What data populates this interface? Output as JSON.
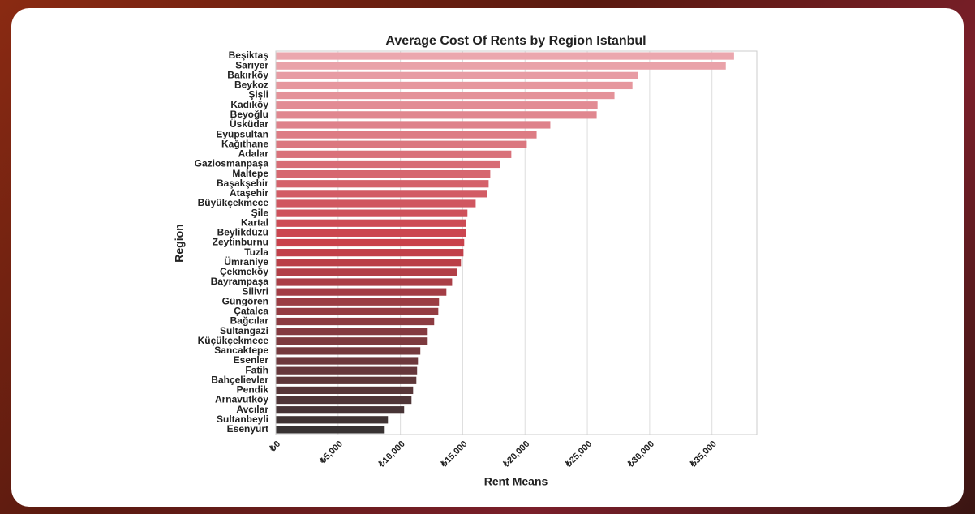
{
  "chart_data": {
    "type": "barh",
    "title": "Average Cost Of Rents by Region Istanbul",
    "xlabel": "Rent Means",
    "ylabel": "Region",
    "categories": [
      "Beşiktaş",
      "Sarıyer",
      "Bakırköy",
      "Beykoz",
      "Şişli",
      "Kadıköy",
      "Beyoğlu",
      "Üsküdar",
      "Eyüpsultan",
      "Kağıthane",
      "Adalar",
      "Gaziosmanpaşa",
      "Maltepe",
      "Başakşehir",
      "Ataşehir",
      "Büyükçekmece",
      "Şile",
      "Kartal",
      "Beylikdüzü",
      "Zeytinburnu",
      "Tuzla",
      "Ümraniye",
      "Çekmeköy",
      "Bayrampaşa",
      "Silivri",
      "Güngören",
      "Çatalca",
      "Bağcılar",
      "Sultangazi",
      "Küçükçekmece",
      "Sancaktepe",
      "Esenler",
      "Fatih",
      "Bahçelievler",
      "Pendik",
      "Arnavutköy",
      "Avcılar",
      "Sultanbeyli",
      "Esenyurt"
    ],
    "values": [
      36770,
      36110,
      29070,
      28620,
      27180,
      25820,
      25750,
      22030,
      20930,
      20140,
      18900,
      17990,
      17210,
      17080,
      16950,
      16040,
      15380,
      15250,
      15250,
      15120,
      15060,
      14860,
      14540,
      14150,
      13690,
      13100,
      13040,
      12710,
      12190,
      12190,
      11600,
      11410,
      11340,
      11280,
      11020,
      10890,
      10300,
      9000,
      8740
    ],
    "palette": [
      "#eba7ae",
      "#c9414b",
      "#383333"
    ],
    "xlim": [
      0,
      38600
    ],
    "xticks": [
      {
        "value": 0,
        "label": "₺0"
      },
      {
        "value": 5000,
        "label": "₺5,000"
      },
      {
        "value": 10000,
        "label": "₺10,000"
      },
      {
        "value": 15000,
        "label": "₺15,000"
      },
      {
        "value": 20000,
        "label": "₺20,000"
      },
      {
        "value": 25000,
        "label": "₺25,000"
      },
      {
        "value": 30000,
        "label": "₺30,000"
      },
      {
        "value": 35000,
        "label": "₺35,000"
      }
    ],
    "grid": true
  }
}
